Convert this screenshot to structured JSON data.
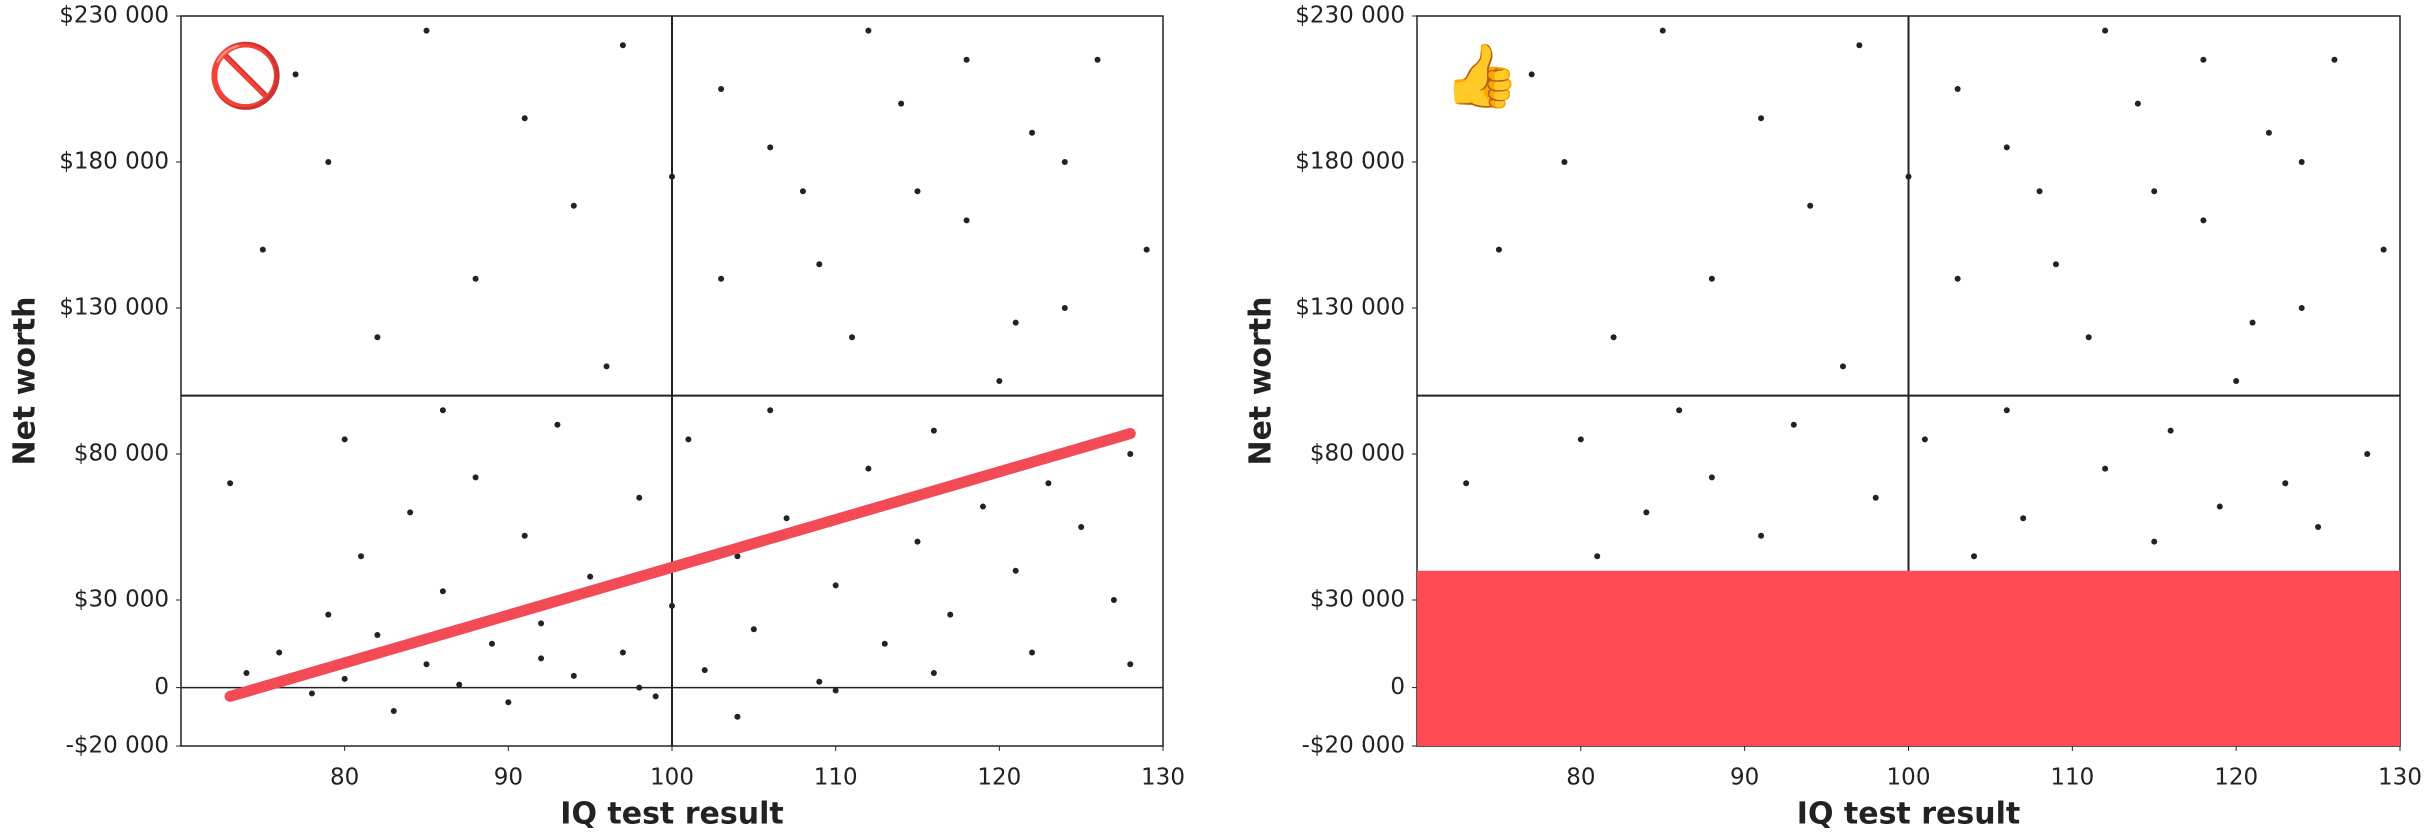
{
  "chart_data": [
    {
      "type": "scatter",
      "annotation": "🚫",
      "xlabel": "IQ test result",
      "ylabel": "Net worth",
      "color": "#222222",
      "xlim": [
        70,
        130
      ],
      "xticks": [
        80,
        90,
        100,
        110,
        120,
        130
      ],
      "ylim": [
        -20000,
        230000
      ],
      "yticks": [
        {
          "value": -20000,
          "label": "-$20 000"
        },
        {
          "value": 0,
          "label": "0"
        },
        {
          "value": 30000,
          "label": "$30 000"
        },
        {
          "value": 80000,
          "label": "$80 000"
        },
        {
          "value": 130000,
          "label": "$130 000"
        },
        {
          "value": 180000,
          "label": "$180 000"
        },
        {
          "value": 230000,
          "label": "$230 000"
        }
      ],
      "reference_x": 100,
      "reference_y": 100000,
      "trend": {
        "x": [
          73,
          128
        ],
        "y": [
          -3000,
          87000
        ],
        "color": "#f24b56"
      },
      "x": [
        74,
        76,
        78,
        79,
        80,
        81,
        82,
        83,
        84,
        85,
        86,
        87,
        88,
        89,
        90,
        91,
        92,
        93,
        94,
        95,
        96,
        97,
        98,
        99,
        100,
        101,
        102,
        103,
        104,
        105,
        106,
        107,
        108,
        109,
        110,
        111,
        112,
        113,
        114,
        115,
        116,
        117,
        118,
        119,
        120,
        121,
        122,
        123,
        124,
        125,
        126,
        127,
        128,
        129,
        75,
        77,
        79,
        82,
        85,
        88,
        91,
        94,
        97,
        100,
        103,
        106,
        109,
        112,
        115,
        118,
        121,
        124,
        73,
        80,
        86,
        92,
        98,
        104,
        110,
        116,
        122,
        128
      ],
      "y": [
        5000,
        12000,
        -2000,
        25000,
        3000,
        45000,
        18000,
        -8000,
        60000,
        8000,
        33000,
        1000,
        72000,
        15000,
        -5000,
        52000,
        22000,
        90000,
        4000,
        38000,
        110000,
        12000,
        65000,
        -3000,
        28000,
        85000,
        6000,
        140000,
        45000,
        20000,
        95000,
        58000,
        170000,
        2000,
        35000,
        120000,
        75000,
        15000,
        200000,
        50000,
        88000,
        25000,
        160000,
        62000,
        105000,
        40000,
        190000,
        70000,
        130000,
        55000,
        215000,
        30000,
        80000,
        150000,
        150000,
        210000,
        180000,
        120000,
        225000,
        140000,
        195000,
        165000,
        220000,
        175000,
        205000,
        185000,
        145000,
        225000,
        170000,
        215000,
        125000,
        180000,
        70000,
        85000,
        95000,
        10000,
        0,
        -10000,
        -1000,
        5000,
        12000,
        8000
      ]
    },
    {
      "type": "scatter",
      "annotation": "👍",
      "xlabel": "IQ test result",
      "ylabel": "Net worth",
      "color": "#222222",
      "xlim": [
        70,
        130
      ],
      "xticks": [
        80,
        90,
        100,
        110,
        120,
        130
      ],
      "ylim": [
        -20000,
        230000
      ],
      "yticks": [
        {
          "value": -20000,
          "label": "-$20 000"
        },
        {
          "value": 0,
          "label": "0"
        },
        {
          "value": 30000,
          "label": "$30 000"
        },
        {
          "value": 80000,
          "label": "$80 000"
        },
        {
          "value": 130000,
          "label": "$130 000"
        },
        {
          "value": 180000,
          "label": "$180 000"
        },
        {
          "value": 230000,
          "label": "$230 000"
        }
      ],
      "reference_x": 100,
      "reference_y": 100000,
      "highlight": {
        "y": [
          -20000,
          40000
        ],
        "color": "#ff4a55"
      },
      "x": [
        81,
        84,
        88,
        91,
        93,
        96,
        98,
        101,
        103,
        104,
        106,
        107,
        108,
        111,
        112,
        114,
        115,
        116,
        118,
        119,
        120,
        122,
        123,
        124,
        125,
        126,
        128,
        129,
        75,
        77,
        79,
        82,
        85,
        88,
        91,
        94,
        97,
        100,
        103,
        106,
        109,
        112,
        115,
        118,
        121,
        124,
        73,
        80,
        86
      ],
      "y": [
        45000,
        60000,
        72000,
        52000,
        90000,
        110000,
        65000,
        85000,
        140000,
        45000,
        95000,
        58000,
        170000,
        120000,
        75000,
        200000,
        50000,
        88000,
        160000,
        62000,
        105000,
        190000,
        70000,
        130000,
        55000,
        215000,
        80000,
        150000,
        150000,
        210000,
        180000,
        120000,
        225000,
        140000,
        195000,
        165000,
        220000,
        175000,
        205000,
        185000,
        145000,
        225000,
        170000,
        215000,
        125000,
        180000,
        70000,
        85000,
        95000
      ]
    }
  ]
}
